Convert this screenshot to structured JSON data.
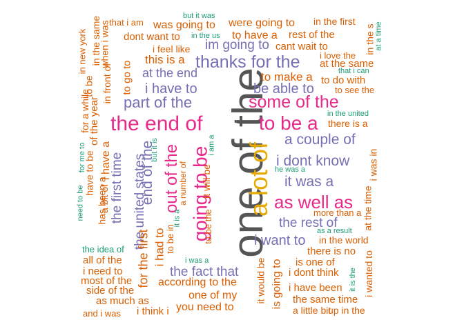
{
  "palette": {
    "orange": "#d95f02",
    "green": "#1b9e77",
    "purple": "#7570b3",
    "pink": "#e7298a",
    "gold": "#e6ab02",
    "gray": "#555555"
  },
  "words": {
    "w001": "one of the",
    "w002": "a lot of",
    "w003": "the end of",
    "w004": "going to be",
    "w005": "out of the",
    "w006": "as well as",
    "w007": "to be a",
    "w008": "some of the",
    "w009": "thanks for the",
    "w010": "part of the",
    "w011": "i dont know",
    "w012": "it was a",
    "w013": "a couple of",
    "w014": "i want to",
    "w015": "the rest of",
    "w016": "the fact that",
    "w017": "i have to",
    "w018": "be able to",
    "w019": "at the end",
    "w020": "im going to",
    "w021": "the united states",
    "w022": "the first time",
    "w023": "end of the",
    "w024": "was going to",
    "w025": "were going to",
    "w026": "dont want to",
    "w027": "to have a",
    "w028": "rest of the",
    "w029": "cant wait to",
    "w030": "i feel like",
    "w031": "this is a",
    "w032": "to go to",
    "w033": "to make a",
    "w034": "in the first",
    "w035": "that i am",
    "w036": "but it was",
    "w037": "in the us",
    "w038": "in new york",
    "w039": "in the same",
    "w040": "when i was",
    "w041": "in front of",
    "w042": "for a while",
    "w043": "of the year",
    "w044": "to be",
    "w045": "for me to",
    "w046": "have to be",
    "w047": "has been a",
    "w048": "a bit of",
    "w049": "i have a",
    "w050": "need to be",
    "w051": "but it is",
    "w052": "i am a",
    "w053": "a number of",
    "w054": "it will be",
    "w055": "to be the",
    "w056": "it is a",
    "w057": "to be in",
    "w058": "i had to",
    "w059": "for the first",
    "w060": "it would be",
    "w061": "is going to",
    "w062": "according to the",
    "w063": "one of my",
    "w064": "you need to",
    "w065": "i think i",
    "w066": "i was a",
    "w067": "the idea of",
    "w068": "all of the",
    "w069": "i need to",
    "w070": "most of the",
    "w071": "side of the",
    "w072": "as much as",
    "w073": "and i was",
    "w074": "in the s",
    "w075": "at a time",
    "w076": "i love the",
    "w077": "at the same",
    "w078": "that i can",
    "w079": "to do with",
    "w080": "to see the",
    "w081": "in the united",
    "w082": "there is a",
    "w083": "he was a",
    "w084": "more than a",
    "w085": "as a result",
    "w086": "in the world",
    "w087": "there is no",
    "w088": "is one of",
    "w089": "i dont think",
    "w090": "i have been",
    "w091": "the same time",
    "w092": "a little bit",
    "w093": "up in the",
    "w094": "it is the",
    "w095": "i wanted to",
    "w096": "at the time",
    "w097": "i was in"
  }
}
